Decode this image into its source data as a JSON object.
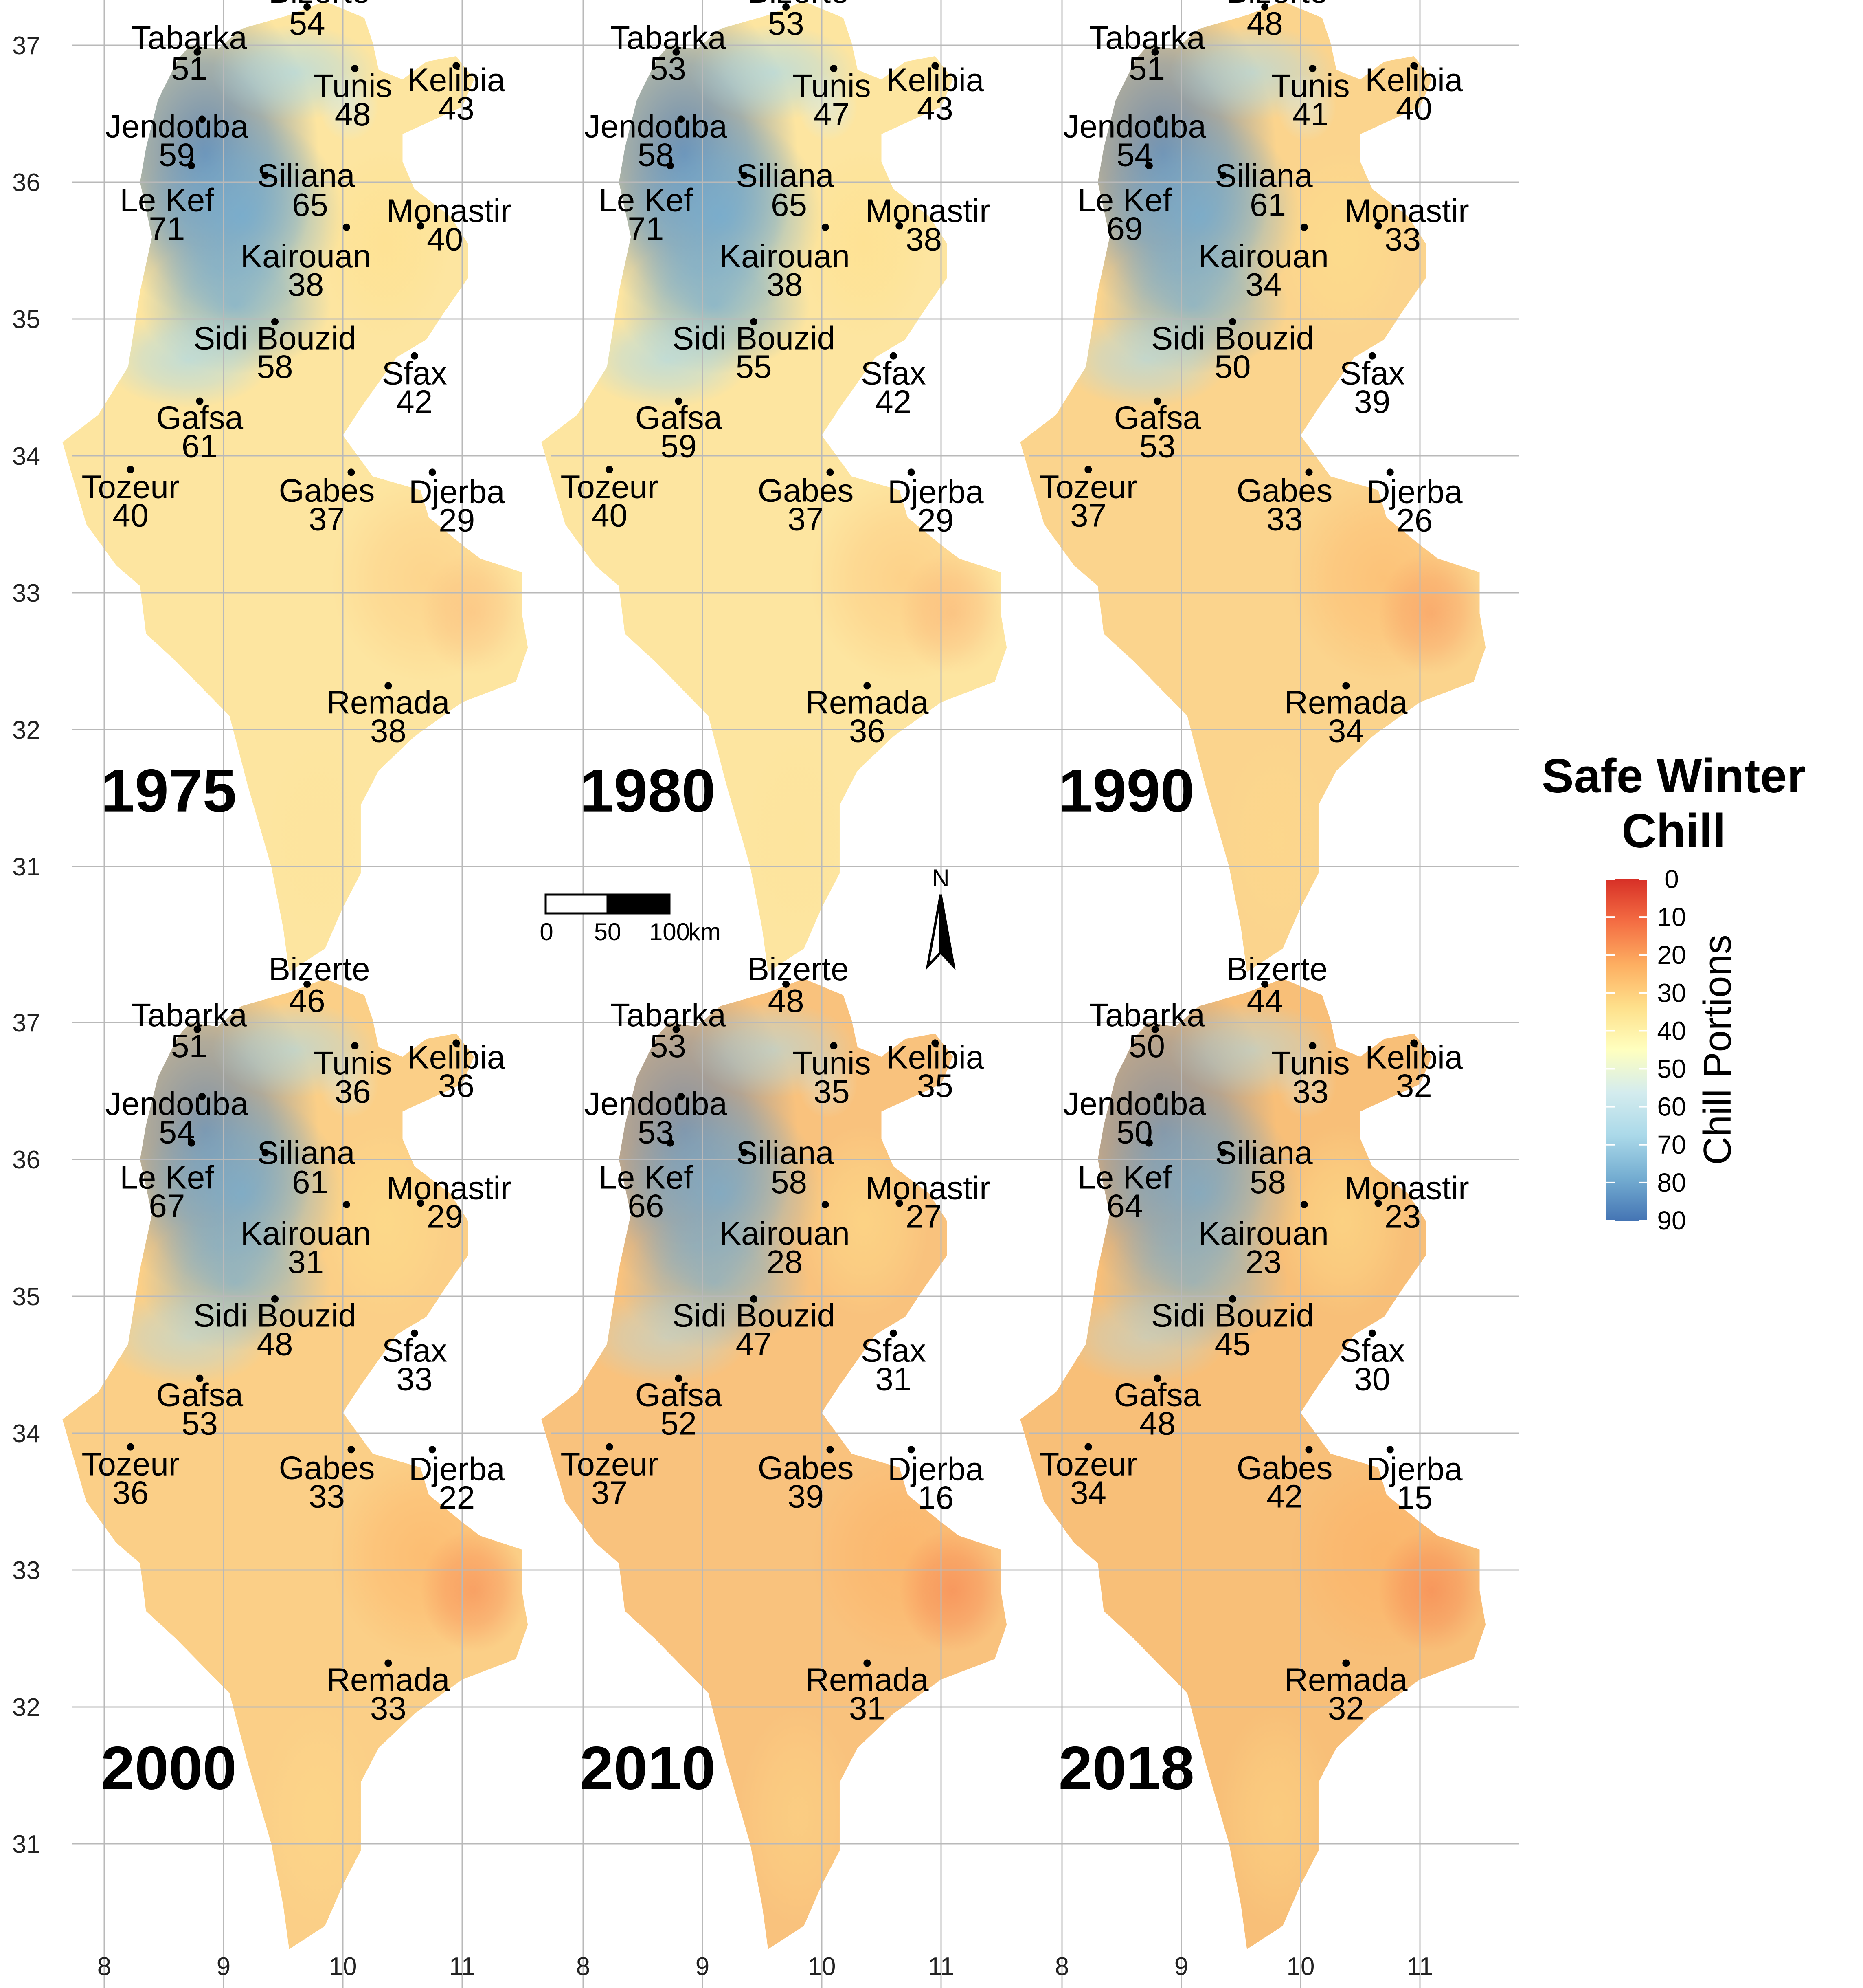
{
  "legend": {
    "title_line1": "Safe Winter",
    "title_line2": "Chill",
    "axis_title": "Chill Portions",
    "ticks": [
      "0",
      "10",
      "20",
      "30",
      "40",
      "50",
      "60",
      "70",
      "80",
      "90"
    ],
    "colors": [
      "#d73027",
      "#f46d43",
      "#fdae61",
      "#fee08b",
      "#ffffbf",
      "#d4ecee",
      "#abd9e9",
      "#74add1",
      "#4575b4"
    ]
  },
  "axes": {
    "lat_labels": [
      "37",
      "36",
      "35",
      "34",
      "33",
      "32",
      "31"
    ],
    "lon_labels": [
      "8",
      "9",
      "10",
      "11"
    ]
  },
  "scalebar": {
    "labels": [
      "0",
      "50",
      "100"
    ],
    "unit": "km"
  },
  "north_label": "N",
  "chart_data": {
    "type": "map",
    "cities": [
      "Tabarka",
      "Bizerte",
      "Jendouba",
      "Tunis",
      "Kelibia",
      "Le Kef",
      "Siliana",
      "Monastir",
      "Kairouan",
      "Sidi Bouzid",
      "Sfax",
      "Gafsa",
      "Tozeur",
      "Gabes",
      "Djerba",
      "Remada"
    ],
    "panels": [
      {
        "year": "1975",
        "values": [
          "51",
          "54",
          "59",
          "48",
          "43",
          "71",
          "65",
          "40",
          "38",
          "58",
          "42",
          "61",
          "40",
          "37",
          "29",
          "38"
        ]
      },
      {
        "year": "1980",
        "values": [
          "53",
          "53",
          "58",
          "47",
          "43",
          "71",
          "65",
          "38",
          "38",
          "55",
          "42",
          "59",
          "40",
          "37",
          "29",
          "36"
        ]
      },
      {
        "year": "1990",
        "values": [
          "51",
          "48",
          "54",
          "41",
          "40",
          "69",
          "61",
          "33",
          "34",
          "50",
          "39",
          "53",
          "37",
          "33",
          "26",
          "34"
        ]
      },
      {
        "year": "2000",
        "values": [
          "51",
          "46",
          "54",
          "36",
          "36",
          "67",
          "61",
          "29",
          "31",
          "48",
          "33",
          "53",
          "36",
          "33",
          "22",
          "33"
        ]
      },
      {
        "year": "2010",
        "values": [
          "53",
          "48",
          "53",
          "35",
          "35",
          "66",
          "58",
          "27",
          "28",
          "47",
          "31",
          "52",
          "37",
          "39",
          "16",
          "31"
        ]
      },
      {
        "year": "2018",
        "values": [
          "50",
          "44",
          "50",
          "33",
          "32",
          "64",
          "58",
          "23",
          "23",
          "45",
          "30",
          "48",
          "34",
          "42",
          "15",
          "32"
        ]
      }
    ]
  }
}
